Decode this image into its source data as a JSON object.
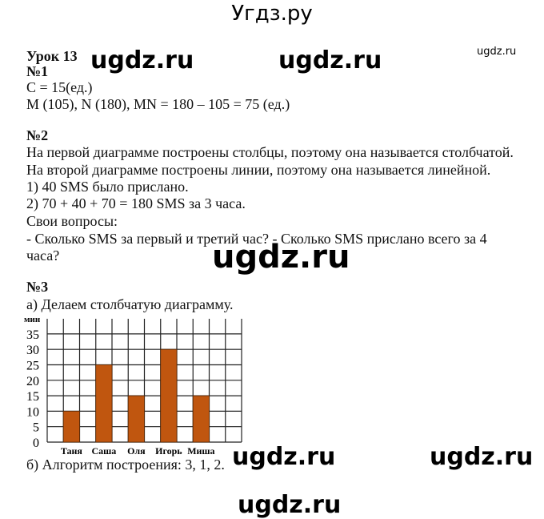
{
  "header": {
    "site_title": "Угдз.ру",
    "small_watermark": "ugdz.ru",
    "watermark": "ugdz.ru"
  },
  "lesson": {
    "title": "Урок 13",
    "task1": {
      "label": "№1",
      "lines": [
        "C = 15(ед.)",
        "M (105),  N (180),    MN = 180 – 105 = 75 (ед.)"
      ]
    },
    "task2": {
      "label": "№2",
      "lines": [
        "На первой диаграмме построены столбцы, поэтому она называется столбчатой.",
        "На второй диаграмме построены линии, поэтому она называется линейной.",
        "1) 40 SMS было прислано.",
        "2) 70 + 40 + 70 = 180 SMS за 3 часа.",
        "Свои вопросы:",
        "- Сколько SMS за первый и третий час?   - Сколько SMS прислано всего за 4",
        "часа?"
      ]
    },
    "task3": {
      "label": "№3",
      "line_a": "а) Делаем столбчатую диаграмму.",
      "line_b": "б) Алгоритм построения: 3, 1, 2."
    }
  },
  "chart_data": {
    "type": "bar",
    "ylabel": "мин",
    "categories": [
      "Таня",
      "Саша",
      "Оля",
      "Игорь",
      "Миша"
    ],
    "values": [
      10,
      25,
      15,
      30,
      15
    ],
    "yticks": [
      0,
      5,
      10,
      15,
      20,
      25,
      30,
      35
    ],
    "ylim": [
      0,
      35
    ],
    "grid": true,
    "bar_color": "#c0560f"
  }
}
